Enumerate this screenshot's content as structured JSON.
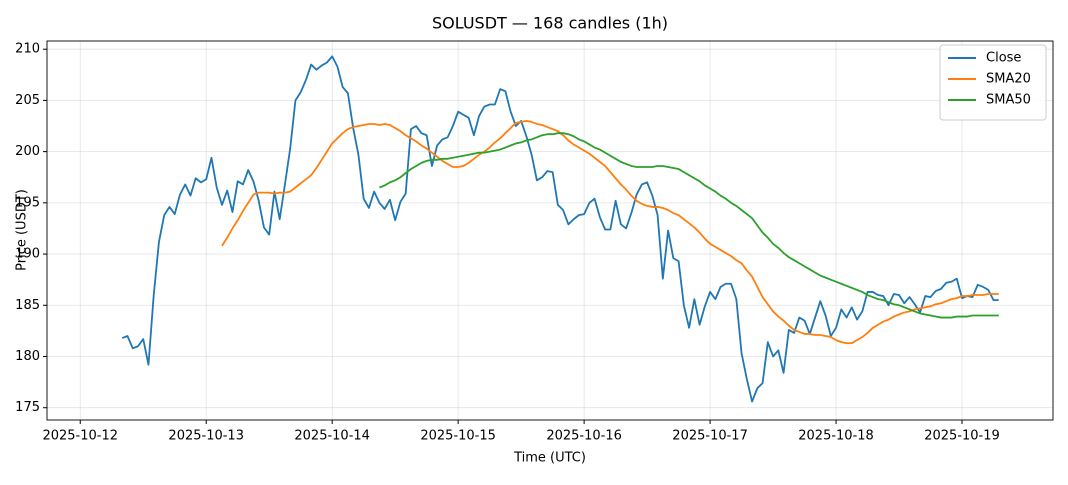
{
  "chart_data": {
    "type": "line",
    "title": "SOLUSDT — 168 candles (1h)",
    "xlabel": "Time (UTC)",
    "ylabel": "Price (USDT)",
    "x": [
      "2025-10-12T08:00",
      "2025-10-12T09:00",
      "2025-10-12T10:00",
      "2025-10-12T11:00",
      "2025-10-12T12:00",
      "2025-10-12T13:00",
      "2025-10-12T14:00",
      "2025-10-12T15:00",
      "2025-10-12T16:00",
      "2025-10-12T17:00",
      "2025-10-12T18:00",
      "2025-10-12T19:00",
      "2025-10-12T20:00",
      "2025-10-12T21:00",
      "2025-10-12T22:00",
      "2025-10-12T23:00",
      "2025-10-13T00:00",
      "2025-10-13T01:00",
      "2025-10-13T02:00",
      "2025-10-13T03:00",
      "2025-10-13T04:00",
      "2025-10-13T05:00",
      "2025-10-13T06:00",
      "2025-10-13T07:00",
      "2025-10-13T08:00",
      "2025-10-13T09:00",
      "2025-10-13T10:00",
      "2025-10-13T11:00",
      "2025-10-13T12:00",
      "2025-10-13T13:00",
      "2025-10-13T14:00",
      "2025-10-13T15:00",
      "2025-10-13T16:00",
      "2025-10-13T17:00",
      "2025-10-13T18:00",
      "2025-10-13T19:00",
      "2025-10-13T20:00",
      "2025-10-13T21:00",
      "2025-10-13T22:00",
      "2025-10-13T23:00",
      "2025-10-14T00:00",
      "2025-10-14T01:00",
      "2025-10-14T02:00",
      "2025-10-14T03:00",
      "2025-10-14T04:00",
      "2025-10-14T05:00",
      "2025-10-14T06:00",
      "2025-10-14T07:00",
      "2025-10-14T08:00",
      "2025-10-14T09:00",
      "2025-10-14T10:00",
      "2025-10-14T11:00",
      "2025-10-14T12:00",
      "2025-10-14T13:00",
      "2025-10-14T14:00",
      "2025-10-14T15:00",
      "2025-10-14T16:00",
      "2025-10-14T17:00",
      "2025-10-14T18:00",
      "2025-10-14T19:00",
      "2025-10-14T20:00",
      "2025-10-14T21:00",
      "2025-10-14T22:00",
      "2025-10-14T23:00",
      "2025-10-15T00:00",
      "2025-10-15T01:00",
      "2025-10-15T02:00",
      "2025-10-15T03:00",
      "2025-10-15T04:00",
      "2025-10-15T05:00",
      "2025-10-15T06:00",
      "2025-10-15T07:00",
      "2025-10-15T08:00",
      "2025-10-15T09:00",
      "2025-10-15T10:00",
      "2025-10-15T11:00",
      "2025-10-15T12:00",
      "2025-10-15T13:00",
      "2025-10-15T14:00",
      "2025-10-15T15:00",
      "2025-10-15T16:00",
      "2025-10-15T17:00",
      "2025-10-15T18:00",
      "2025-10-15T19:00",
      "2025-10-15T20:00",
      "2025-10-15T21:00",
      "2025-10-15T22:00",
      "2025-10-15T23:00",
      "2025-10-16T00:00",
      "2025-10-16T01:00",
      "2025-10-16T02:00",
      "2025-10-16T03:00",
      "2025-10-16T04:00",
      "2025-10-16T05:00",
      "2025-10-16T06:00",
      "2025-10-16T07:00",
      "2025-10-16T08:00",
      "2025-10-16T09:00",
      "2025-10-16T10:00",
      "2025-10-16T11:00",
      "2025-10-16T12:00",
      "2025-10-16T13:00",
      "2025-10-16T14:00",
      "2025-10-16T15:00",
      "2025-10-16T16:00",
      "2025-10-16T17:00",
      "2025-10-16T18:00",
      "2025-10-16T19:00",
      "2025-10-16T20:00",
      "2025-10-16T21:00",
      "2025-10-16T22:00",
      "2025-10-16T23:00",
      "2025-10-17T00:00",
      "2025-10-17T01:00",
      "2025-10-17T02:00",
      "2025-10-17T03:00",
      "2025-10-17T04:00",
      "2025-10-17T05:00",
      "2025-10-17T06:00",
      "2025-10-17T07:00",
      "2025-10-17T08:00",
      "2025-10-17T09:00",
      "2025-10-17T10:00",
      "2025-10-17T11:00",
      "2025-10-17T12:00",
      "2025-10-17T13:00",
      "2025-10-17T14:00",
      "2025-10-17T15:00",
      "2025-10-17T16:00",
      "2025-10-17T17:00",
      "2025-10-17T18:00",
      "2025-10-17T19:00",
      "2025-10-17T20:00",
      "2025-10-17T21:00",
      "2025-10-17T22:00",
      "2025-10-17T23:00",
      "2025-10-18T00:00",
      "2025-10-18T01:00",
      "2025-10-18T02:00",
      "2025-10-18T03:00",
      "2025-10-18T04:00",
      "2025-10-18T05:00",
      "2025-10-18T06:00",
      "2025-10-18T07:00",
      "2025-10-18T08:00",
      "2025-10-18T09:00",
      "2025-10-18T10:00",
      "2025-10-18T11:00",
      "2025-10-18T12:00",
      "2025-10-18T13:00",
      "2025-10-18T14:00",
      "2025-10-18T15:00",
      "2025-10-18T16:00",
      "2025-10-18T17:00",
      "2025-10-18T18:00",
      "2025-10-18T19:00",
      "2025-10-18T20:00",
      "2025-10-18T21:00",
      "2025-10-18T22:00",
      "2025-10-18T23:00",
      "2025-10-19T00:00",
      "2025-10-19T01:00",
      "2025-10-19T02:00",
      "2025-10-19T03:00",
      "2025-10-19T04:00",
      "2025-10-19T05:00",
      "2025-10-19T06:00",
      "2025-10-19T07:00"
    ],
    "series": [
      {
        "name": "Close",
        "color": "#1f77b4",
        "values": [
          181.8,
          182.0,
          180.8,
          181.0,
          181.7,
          179.2,
          186.0,
          191.2,
          193.8,
          194.6,
          193.9,
          195.8,
          196.8,
          195.7,
          197.4,
          197.0,
          197.3,
          199.4,
          196.5,
          194.8,
          196.2,
          194.1,
          197.1,
          196.8,
          198.2,
          197.1,
          195.2,
          192.6,
          191.9,
          196.1,
          193.4,
          196.8,
          200.3,
          205.0,
          205.8,
          207.0,
          208.5,
          208.0,
          208.4,
          208.7,
          209.3,
          208.3,
          206.3,
          205.7,
          202.3,
          199.7,
          195.4,
          194.5,
          196.1,
          195.0,
          194.4,
          195.3,
          193.3,
          195.1,
          195.9,
          202.2,
          202.5,
          201.8,
          201.6,
          198.6,
          200.6,
          201.2,
          201.4,
          202.5,
          203.9,
          203.6,
          203.3,
          201.6,
          203.5,
          204.4,
          204.6,
          204.6,
          206.1,
          205.9,
          203.9,
          202.5,
          203.0,
          201.5,
          199.7,
          197.2,
          197.5,
          198.1,
          198.0,
          194.8,
          194.3,
          192.9,
          193.4,
          193.8,
          193.9,
          195.0,
          195.4,
          193.6,
          192.4,
          192.4,
          195.2,
          192.9,
          192.5,
          194.0,
          195.8,
          196.8,
          197.0,
          195.7,
          193.8,
          187.6,
          192.3,
          189.6,
          189.3,
          185.0,
          182.8,
          185.6,
          183.1,
          184.9,
          186.3,
          185.6,
          186.8,
          187.1,
          187.1,
          185.6,
          180.3,
          177.8,
          175.6,
          176.9,
          177.4,
          181.4,
          180.0,
          180.6,
          178.4,
          182.6,
          182.3,
          183.8,
          183.5,
          182.2,
          183.8,
          185.4,
          184.0,
          182.0,
          182.8,
          184.6,
          183.8,
          184.8,
          183.6,
          184.4,
          186.3,
          186.3,
          186.0,
          185.9,
          185.0,
          186.1,
          186.0,
          185.2,
          185.8,
          185.1,
          184.3,
          185.9,
          185.8,
          186.4,
          186.6,
          187.2,
          187.3,
          187.6,
          185.7,
          185.9,
          185.8,
          187.0,
          186.8,
          186.5,
          185.5,
          185.5
        ]
      },
      {
        "name": "SMA20",
        "color": "#ff7f0e",
        "values": [
          null,
          null,
          null,
          null,
          null,
          null,
          null,
          null,
          null,
          null,
          null,
          null,
          null,
          null,
          null,
          null,
          null,
          null,
          null,
          190.8,
          191.6,
          192.5,
          193.3,
          194.2,
          195.0,
          195.8,
          196.0,
          196.0,
          196.0,
          195.9,
          196.0,
          196.0,
          196.1,
          196.5,
          196.9,
          197.3,
          197.7,
          198.4,
          199.2,
          200.0,
          200.8,
          201.3,
          201.8,
          202.2,
          202.4,
          202.5,
          202.6,
          202.7,
          202.7,
          202.6,
          202.7,
          202.6,
          202.3,
          202.0,
          201.6,
          201.3,
          201.0,
          200.6,
          200.3,
          199.9,
          199.5,
          199.1,
          198.8,
          198.5,
          198.5,
          198.6,
          198.9,
          199.3,
          199.7,
          200.0,
          200.4,
          200.9,
          201.3,
          201.8,
          202.3,
          202.8,
          202.9,
          203.0,
          202.9,
          202.7,
          202.6,
          202.4,
          202.2,
          202.0,
          201.6,
          201.1,
          200.7,
          200.4,
          200.1,
          199.8,
          199.4,
          199.0,
          198.6,
          198.0,
          197.4,
          196.8,
          196.3,
          195.7,
          195.2,
          194.9,
          194.7,
          194.6,
          194.6,
          194.5,
          194.3,
          194.0,
          193.8,
          193.4,
          193.0,
          192.6,
          192.1,
          191.5,
          191.0,
          190.7,
          190.4,
          190.1,
          189.8,
          189.4,
          189.1,
          188.4,
          187.8,
          186.8,
          185.8,
          185.1,
          184.4,
          183.9,
          183.5,
          183.0,
          182.6,
          182.4,
          182.2,
          182.2,
          182.1,
          182.1,
          182.0,
          181.9,
          181.6,
          181.4,
          181.3,
          181.3,
          181.6,
          181.9,
          182.3,
          182.8,
          183.1,
          183.4,
          183.6,
          183.9,
          184.1,
          184.3,
          184.4,
          184.6,
          184.7,
          184.8,
          184.9,
          185.1,
          185.2,
          185.4,
          185.6,
          185.7,
          185.9,
          185.9,
          186.0,
          186.0,
          186.0,
          186.1,
          186.1,
          186.1
        ]
      },
      {
        "name": "SMA50",
        "color": "#2ca02c",
        "values": [
          null,
          null,
          null,
          null,
          null,
          null,
          null,
          null,
          null,
          null,
          null,
          null,
          null,
          null,
          null,
          null,
          null,
          null,
          null,
          null,
          null,
          null,
          null,
          null,
          null,
          null,
          null,
          null,
          null,
          null,
          null,
          null,
          null,
          null,
          null,
          null,
          null,
          null,
          null,
          null,
          null,
          null,
          null,
          null,
          null,
          null,
          null,
          null,
          null,
          196.5,
          196.7,
          197.0,
          197.2,
          197.5,
          197.9,
          198.3,
          198.6,
          198.9,
          199.1,
          199.2,
          199.2,
          199.3,
          199.3,
          199.4,
          199.5,
          199.6,
          199.7,
          199.8,
          199.9,
          199.9,
          200.0,
          200.1,
          200.2,
          200.4,
          200.6,
          200.8,
          200.9,
          201.1,
          201.2,
          201.4,
          201.6,
          201.7,
          201.7,
          201.8,
          201.8,
          201.7,
          201.5,
          201.2,
          201.0,
          200.7,
          200.4,
          200.2,
          199.9,
          199.6,
          199.3,
          199.0,
          198.8,
          198.6,
          198.5,
          198.5,
          198.5,
          198.5,
          198.6,
          198.6,
          198.5,
          198.4,
          198.3,
          198.0,
          197.7,
          197.4,
          197.1,
          196.7,
          196.4,
          196.1,
          195.7,
          195.4,
          195.0,
          194.7,
          194.3,
          193.9,
          193.5,
          192.8,
          192.1,
          191.6,
          191.0,
          190.6,
          190.1,
          189.7,
          189.4,
          189.1,
          188.8,
          188.5,
          188.2,
          187.9,
          187.7,
          187.5,
          187.3,
          187.1,
          186.9,
          186.7,
          186.5,
          186.3,
          186.0,
          185.8,
          185.6,
          185.5,
          185.3,
          185.1,
          185.0,
          184.8,
          184.6,
          184.4,
          184.2,
          184.1,
          184.0,
          183.9,
          183.8,
          183.8,
          183.8,
          183.9,
          183.9,
          183.9,
          184.0,
          184.0,
          184.0,
          184.0,
          184.0,
          184.0
        ]
      }
    ],
    "xlim": [
      "2025-10-11T17:40",
      "2025-10-19T17:20"
    ],
    "xticks": [
      "2025-10-12",
      "2025-10-13",
      "2025-10-14",
      "2025-10-15",
      "2025-10-16",
      "2025-10-17",
      "2025-10-18",
      "2025-10-19"
    ],
    "ylim": [
      173.8,
      210.8
    ],
    "yticks": [
      175,
      180,
      185,
      190,
      195,
      200,
      205,
      210
    ],
    "grid": true,
    "legend": "upper right"
  }
}
